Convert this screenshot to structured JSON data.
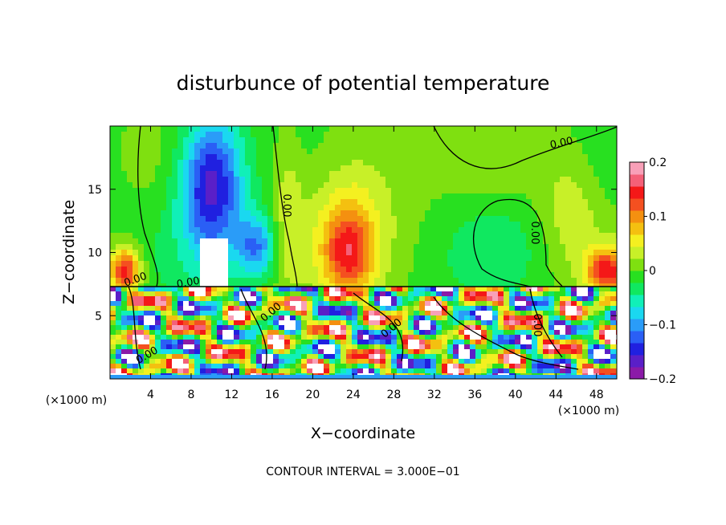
{
  "chart_data": {
    "type": "heatmap",
    "title": "disturbunce of potential temperature",
    "xlabel": "X−coordinate",
    "ylabel": "Z−coordinate",
    "x_unit_left": "(×1000 m)",
    "x_unit_right": "(×1000 m)",
    "xlim": [
      0,
      50
    ],
    "ylim": [
      0,
      20
    ],
    "x_ticks": [
      "4",
      "8",
      "12",
      "16",
      "20",
      "24",
      "28",
      "32",
      "36",
      "40",
      "44",
      "48"
    ],
    "x_tick_values": [
      4,
      8,
      12,
      16,
      20,
      24,
      28,
      32,
      36,
      40,
      44,
      48
    ],
    "y_ticks": [
      "5",
      "10",
      "15"
    ],
    "y_tick_values": [
      5,
      10,
      15
    ],
    "colorbar": {
      "range": [
        -0.2,
        0.2
      ],
      "tick_labels": [
        "0.2",
        "0.1",
        "0",
        "−0.1",
        "−0.2"
      ],
      "tick_values": [
        0.2,
        0.1,
        0,
        -0.1,
        -0.2
      ],
      "colors": [
        "#8b1aa8",
        "#5a1fc8",
        "#2020e0",
        "#2a5ff5",
        "#2a9cf8",
        "#1ad8f0",
        "#10f0b8",
        "#10e860",
        "#28e020",
        "#7fe010",
        "#c8f028",
        "#f4f020",
        "#f4c010",
        "#f49010",
        "#f45020",
        "#f41818",
        "#f46078",
        "#f8a0b8"
      ]
    },
    "contour_label": "0.00",
    "footer": "CONTOUR INTERVAL = 3.000E−01",
    "features": [
      {
        "x": 10.0,
        "z": 15.5,
        "value": -0.17,
        "sx": 3.2,
        "sz": 5.5
      },
      {
        "x": 14.5,
        "z": 10.5,
        "value": -0.1,
        "sx": 2.0,
        "sz": 2.5
      },
      {
        "x": 23.5,
        "z": 10.0,
        "value": 0.12,
        "sx": 2.5,
        "sz": 3.5
      },
      {
        "x": 24.0,
        "z": 15.0,
        "value": 0.05,
        "sx": 5.0,
        "sz": 6.0
      },
      {
        "x": 1.5,
        "z": 8.5,
        "value": 0.16,
        "sx": 1.5,
        "sz": 1.8
      },
      {
        "x": 49.0,
        "z": 8.5,
        "value": 0.14,
        "sx": 2.0,
        "sz": 1.8
      },
      {
        "x": 38.0,
        "z": 11.0,
        "value": -0.02,
        "sx": 4.0,
        "sz": 3.0
      },
      {
        "x": 17.5,
        "z": 13.0,
        "value": 0.04,
        "sx": 1.5,
        "sz": 6.0
      },
      {
        "x": 45.5,
        "z": 13.0,
        "value": 0.04,
        "sx": 3.0,
        "sz": 5.0
      }
    ]
  }
}
